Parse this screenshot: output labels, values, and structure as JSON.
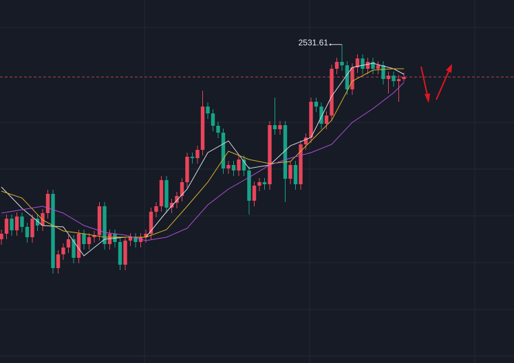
{
  "chart_data": {
    "type": "candlestick",
    "up_color": "#e8455a",
    "down_color": "#16a388",
    "ylim": [
      2300,
      2564
    ],
    "open": [
      2390,
      2394,
      2405,
      2396.5,
      2406.5,
      2399,
      2391.5,
      2405,
      2400,
      2409,
      2423,
      2369,
      2379,
      2384,
      2390,
      2376.5,
      2394,
      2386.5,
      2391.5,
      2393,
      2414,
      2386.5,
      2394,
      2388,
      2371.5,
      2389,
      2391.5,
      2388,
      2391.5,
      2394,
      2410,
      2414,
      2433,
      2413,
      2416.5,
      2421.5,
      2431.5,
      2450,
      2449,
      2455,
      2486.5,
      2481.5,
      2472.5,
      2467.5,
      2441.5,
      2444,
      2440,
      2448,
      2440,
      2418,
      2429,
      2431.5,
      2430,
      2473,
      2470,
      2473,
      2434,
      2444,
      2430,
      2459,
      2464,
      2490,
      2486.5,
      2474,
      2480,
      2514,
      2519,
      2516.5,
      2499,
      2515,
      2521.5,
      2514,
      2519,
      2514,
      2516.5,
      2506.5,
      2509,
      2505,
      2506.5
    ],
    "high": [
      2397,
      2408,
      2408,
      2409.5,
      2409.5,
      2402,
      2408,
      2408,
      2412,
      2426,
      2426,
      2382,
      2387,
      2393,
      2393,
      2397,
      2397,
      2394.5,
      2396,
      2417,
      2417,
      2397,
      2397,
      2391,
      2392,
      2394.5,
      2394.5,
      2394.5,
      2397,
      2413,
      2417,
      2436,
      2436,
      2419.5,
      2424.5,
      2434.5,
      2453,
      2453,
      2458,
      2498,
      2489.5,
      2484.5,
      2475.5,
      2470.5,
      2447,
      2447,
      2451,
      2451,
      2443,
      2432,
      2434.5,
      2434.5,
      2476,
      2493,
      2476,
      2476,
      2447,
      2447,
      2462,
      2467,
      2493,
      2493,
      2489.5,
      2483,
      2517,
      2522,
      2531.61,
      2519.5,
      2518,
      2524.5,
      2524.5,
      2522,
      2522,
      2519.5,
      2519.5,
      2512,
      2512,
      2509.5,
      2511
    ],
    "low": [
      2386,
      2390,
      2392.5,
      2392.5,
      2395,
      2387.5,
      2387.5,
      2396,
      2396,
      2405,
      2365,
      2365,
      2375,
      2380,
      2372.5,
      2372.5,
      2382.5,
      2382.5,
      2387.5,
      2389,
      2382.5,
      2382.5,
      2384,
      2367.5,
      2367.5,
      2385,
      2384,
      2384,
      2387.5,
      2390,
      2406,
      2410,
      2409,
      2409,
      2412.5,
      2417.5,
      2427.5,
      2445,
      2445,
      2451,
      2477.5,
      2468.5,
      2463.5,
      2437.5,
      2437.5,
      2436,
      2436,
      2436,
      2408,
      2414,
      2425,
      2426,
      2426,
      2466,
      2466,
      2417,
      2430,
      2426,
      2426,
      2455,
      2460,
      2482.5,
      2470,
      2470,
      2476,
      2510,
      2512.5,
      2495,
      2495,
      2511,
      2510,
      2510,
      2510,
      2510,
      2502.5,
      2496,
      2501,
      2490,
      2504.5
    ],
    "close": [
      2394,
      2405,
      2396.5,
      2406.5,
      2399,
      2391.5,
      2405,
      2400,
      2409,
      2423,
      2369,
      2379,
      2384,
      2390,
      2376.5,
      2394,
      2386.5,
      2391.5,
      2393,
      2414,
      2386.5,
      2394,
      2388,
      2371.5,
      2389,
      2391.5,
      2388,
      2391.5,
      2394,
      2410,
      2414,
      2433,
      2413,
      2416.5,
      2421.5,
      2431.5,
      2450,
      2449,
      2455,
      2486.5,
      2481.5,
      2472.5,
      2467.5,
      2441.5,
      2444,
      2440,
      2448,
      2440,
      2418,
      2429,
      2431.5,
      2430,
      2473,
      2470,
      2473,
      2434,
      2444,
      2430,
      2459,
      2464,
      2490,
      2486.5,
      2474,
      2480,
      2514,
      2519,
      2516.5,
      2499,
      2515,
      2521.5,
      2514,
      2519,
      2514,
      2516.5,
      2506.5,
      2509,
      2505,
      2506.5,
      2508
    ],
    "moving_averages": [
      {
        "color": "#d9dde4",
        "x": [
          0,
          4,
          8,
          12,
          16,
          20,
          24,
          28,
          32,
          36,
          40,
          44,
          48,
          52,
          56,
          60,
          64,
          68,
          72,
          76,
          78
        ],
        "values": [
          2428,
          2412.5,
          2400,
          2399,
          2378,
          2390,
          2391.5,
          2391.5,
          2410,
          2426.5,
          2453,
          2461.5,
          2441.5,
          2444,
          2458,
          2464,
          2494,
          2515,
          2518,
          2514,
          2510
        ]
      },
      {
        "color": "#e0b02c",
        "x": [
          0,
          4,
          8,
          12,
          16,
          20,
          24,
          28,
          32,
          36,
          40,
          44,
          48,
          52,
          56,
          60,
          64,
          68,
          72,
          76,
          78
        ],
        "values": [
          2425,
          2420,
          2404,
          2396,
          2394,
          2391.5,
          2391.5,
          2391.5,
          2397,
          2414,
          2431.5,
          2454,
          2448,
          2445,
          2446.5,
          2461.5,
          2476.5,
          2505,
          2513,
          2514,
          2514
        ]
      },
      {
        "color": "#b44fd6",
        "x": [
          0,
          4,
          8,
          12,
          16,
          20,
          24,
          28,
          32,
          36,
          40,
          44,
          48,
          52,
          56,
          60,
          64,
          68,
          72,
          76,
          78
        ],
        "values": [
          2409,
          2411.5,
          2414,
          2409,
          2400,
          2395,
          2393,
          2389,
          2391.5,
          2398,
          2415,
          2426.5,
          2435,
          2444,
          2449,
          2453,
          2459,
          2475,
          2485,
          2496.5,
          2504
        ]
      }
    ],
    "max_label": 2531.61,
    "last_price": 2508,
    "last_price_color": "#b84450"
  }
}
